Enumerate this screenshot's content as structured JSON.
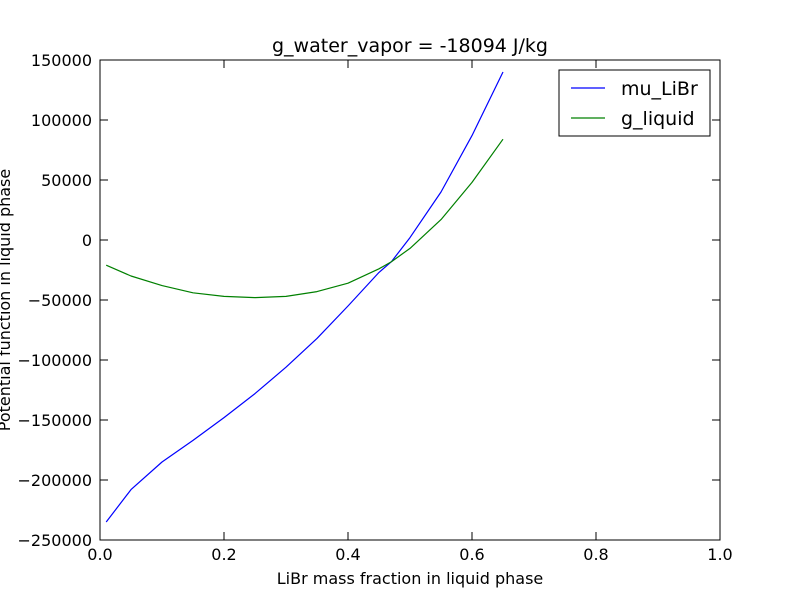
{
  "chart_data": {
    "type": "line",
    "title": "g_water_vapor = -18094 J/kg",
    "xlabel": "LiBr mass fraction in liquid phase",
    "ylabel": "Potential function in liquid phase",
    "xlim": [
      0.0,
      1.0
    ],
    "ylim": [
      -250000,
      150000
    ],
    "xticks": [
      0.0,
      0.2,
      0.4,
      0.6,
      0.8,
      1.0
    ],
    "xtick_labels": [
      "0.0",
      "0.2",
      "0.4",
      "0.6",
      "0.8",
      "1.0"
    ],
    "yticks": [
      -250000,
      -200000,
      -150000,
      -100000,
      -50000,
      0,
      50000,
      100000,
      150000
    ],
    "ytick_labels": [
      "−250000",
      "−200000",
      "−150000",
      "−100000",
      "−50000",
      "0",
      "50000",
      "100000",
      "150000"
    ],
    "grid": false,
    "legend_position": "top-right",
    "series": [
      {
        "name": "mu_LiBr",
        "color": "#0000ff",
        "x": [
          0.01,
          0.05,
          0.1,
          0.15,
          0.2,
          0.25,
          0.3,
          0.35,
          0.4,
          0.45,
          0.47,
          0.5,
          0.55,
          0.6,
          0.65
        ],
        "y": [
          -235000,
          -208000,
          -185000,
          -167000,
          -148000,
          -128000,
          -106000,
          -82000,
          -55000,
          -27000,
          -18094,
          2000,
          40000,
          87000,
          140000
        ]
      },
      {
        "name": "g_liquid",
        "color": "#008000",
        "x": [
          0.01,
          0.05,
          0.1,
          0.15,
          0.2,
          0.25,
          0.3,
          0.35,
          0.4,
          0.45,
          0.47,
          0.5,
          0.55,
          0.6,
          0.65
        ],
        "y": [
          -21000,
          -30000,
          -38000,
          -44000,
          -47000,
          -48000,
          -47000,
          -43000,
          -36000,
          -24000,
          -18094,
          -7000,
          17000,
          48000,
          84000
        ]
      }
    ]
  }
}
